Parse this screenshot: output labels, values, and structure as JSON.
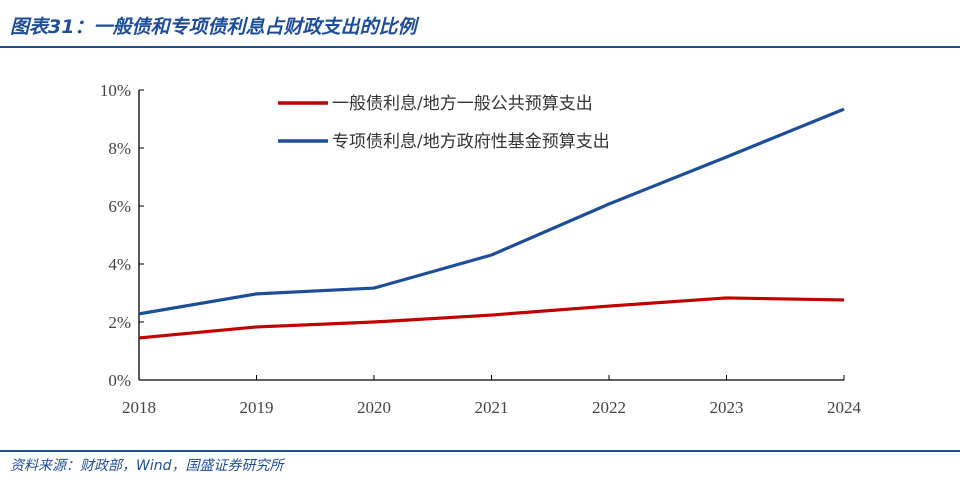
{
  "title": "图表31：一般债和专项债利息占财政支出的比例",
  "source": "资料来源：财政部，Wind，国盛证券研究所",
  "chart_data": {
    "type": "line",
    "categories": [
      "2018",
      "2019",
      "2020",
      "2021",
      "2022",
      "2023",
      "2024"
    ],
    "yticks": [
      "0%",
      "2%",
      "4%",
      "6%",
      "8%",
      "10%"
    ],
    "ylim": [
      0,
      10
    ],
    "grid": false,
    "legend_position": "top-center",
    "series": [
      {
        "name": "一般债利息/地方一般公共预算支出",
        "color": "#c00000",
        "values": [
          1.45,
          1.83,
          2.0,
          2.24,
          2.55,
          2.83,
          2.76
        ]
      },
      {
        "name": "专项债利息/地方政府性基金预算支出",
        "color": "#1f4e99",
        "values": [
          2.28,
          2.97,
          3.17,
          4.31,
          6.07,
          7.69,
          9.34
        ]
      }
    ]
  }
}
